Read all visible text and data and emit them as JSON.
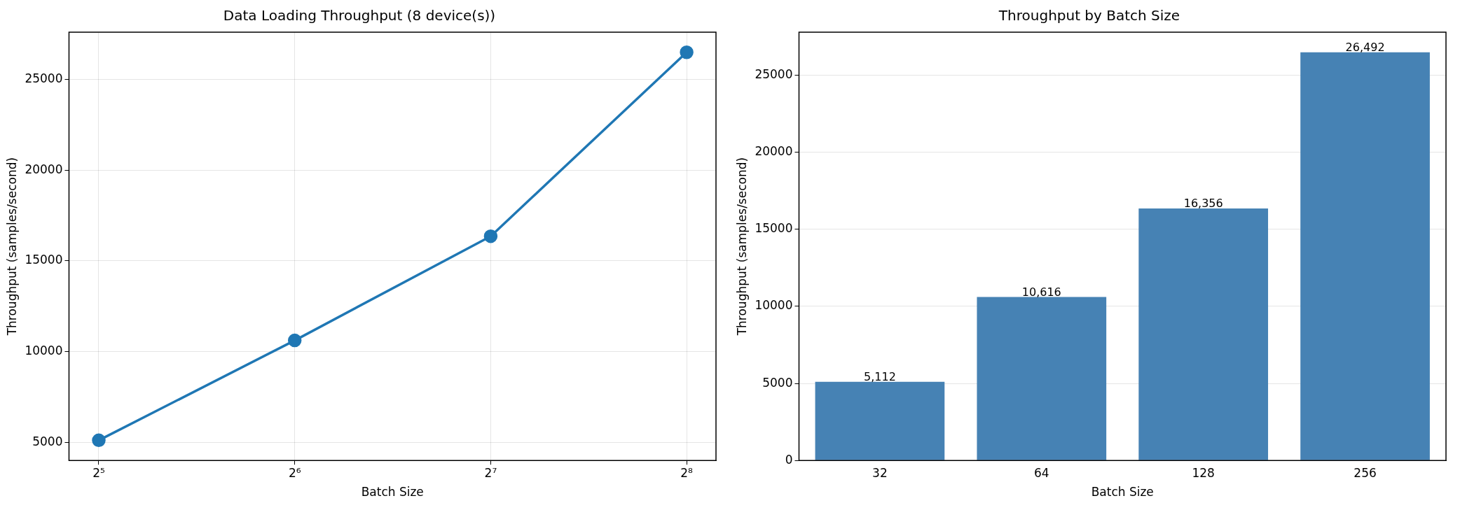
{
  "chart_data": [
    {
      "type": "line",
      "title": "Data Loading Throughput (8 device(s))",
      "xlabel": "Batch Size",
      "ylabel": "Throughput (samples/second)",
      "log": "x",
      "x": [
        32,
        64,
        128,
        256
      ],
      "series": [
        {
          "color": "#1f77b4",
          "values": [
            5112,
            10616,
            16356,
            26492
          ]
        }
      ],
      "xlim": [
        28.8,
        284
      ],
      "xticks": [
        {
          "value": 32,
          "label": "2⁵"
        },
        {
          "value": 64,
          "label": "2⁶"
        },
        {
          "value": 128,
          "label": "2⁷"
        },
        {
          "value": 256,
          "label": "2⁸"
        }
      ],
      "ylim": [
        4000,
        27600
      ],
      "yticks": [
        5000,
        10000,
        15000,
        20000,
        25000
      ],
      "grid": true,
      "marker": "circle",
      "line_style": "solid"
    },
    {
      "type": "bar",
      "title": "Throughput by Batch Size",
      "xlabel": "Batch Size",
      "ylabel": "Throughput (samples/second)",
      "categories": [
        "32",
        "64",
        "128",
        "256"
      ],
      "series": [
        {
          "color": "#4682b4",
          "values": [
            5112,
            10616,
            16356,
            26492
          ]
        }
      ],
      "value_labels": [
        "5,112",
        "10,616",
        "16,356",
        "26,492"
      ],
      "ylim": [
        0,
        27800
      ],
      "yticks": [
        0,
        5000,
        10000,
        15000,
        20000,
        25000
      ],
      "grid": "y"
    }
  ]
}
